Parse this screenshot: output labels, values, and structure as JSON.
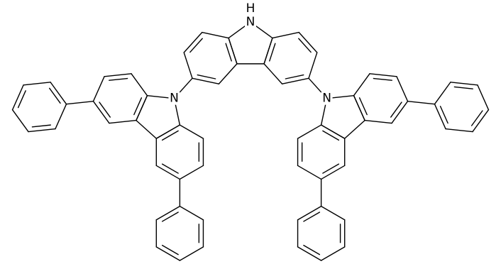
{
  "atoms": [
    {
      "symbol": "N",
      "hydrogen": "H"
    },
    {
      "symbol": "N"
    },
    {
      "symbol": "N"
    }
  ]
}
